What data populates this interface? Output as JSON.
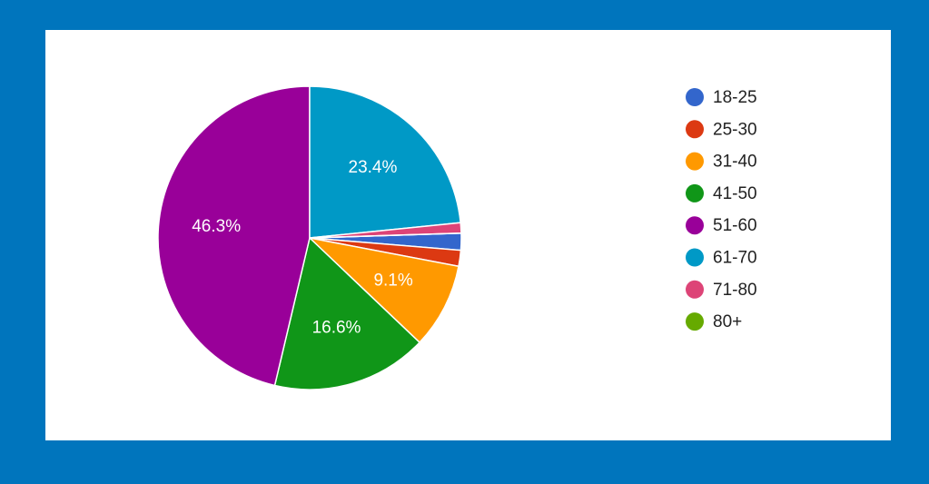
{
  "chart_data": {
    "type": "pie",
    "categories": [
      "18-25",
      "25-30",
      "31-40",
      "41-50",
      "51-60",
      "61-70",
      "71-80",
      "80+"
    ],
    "values": [
      1.8,
      1.7,
      9.1,
      16.6,
      46.3,
      23.4,
      1.1,
      0
    ],
    "value_labels": [
      null,
      null,
      "9.1%",
      "16.6%",
      "46.3%",
      "23.4%",
      null,
      null
    ],
    "colors": [
      "#3366cc",
      "#dc3912",
      "#ff9900",
      "#109618",
      "#990099",
      "#0099c6",
      "#dd4477",
      "#66aa00"
    ],
    "legend": "right"
  }
}
